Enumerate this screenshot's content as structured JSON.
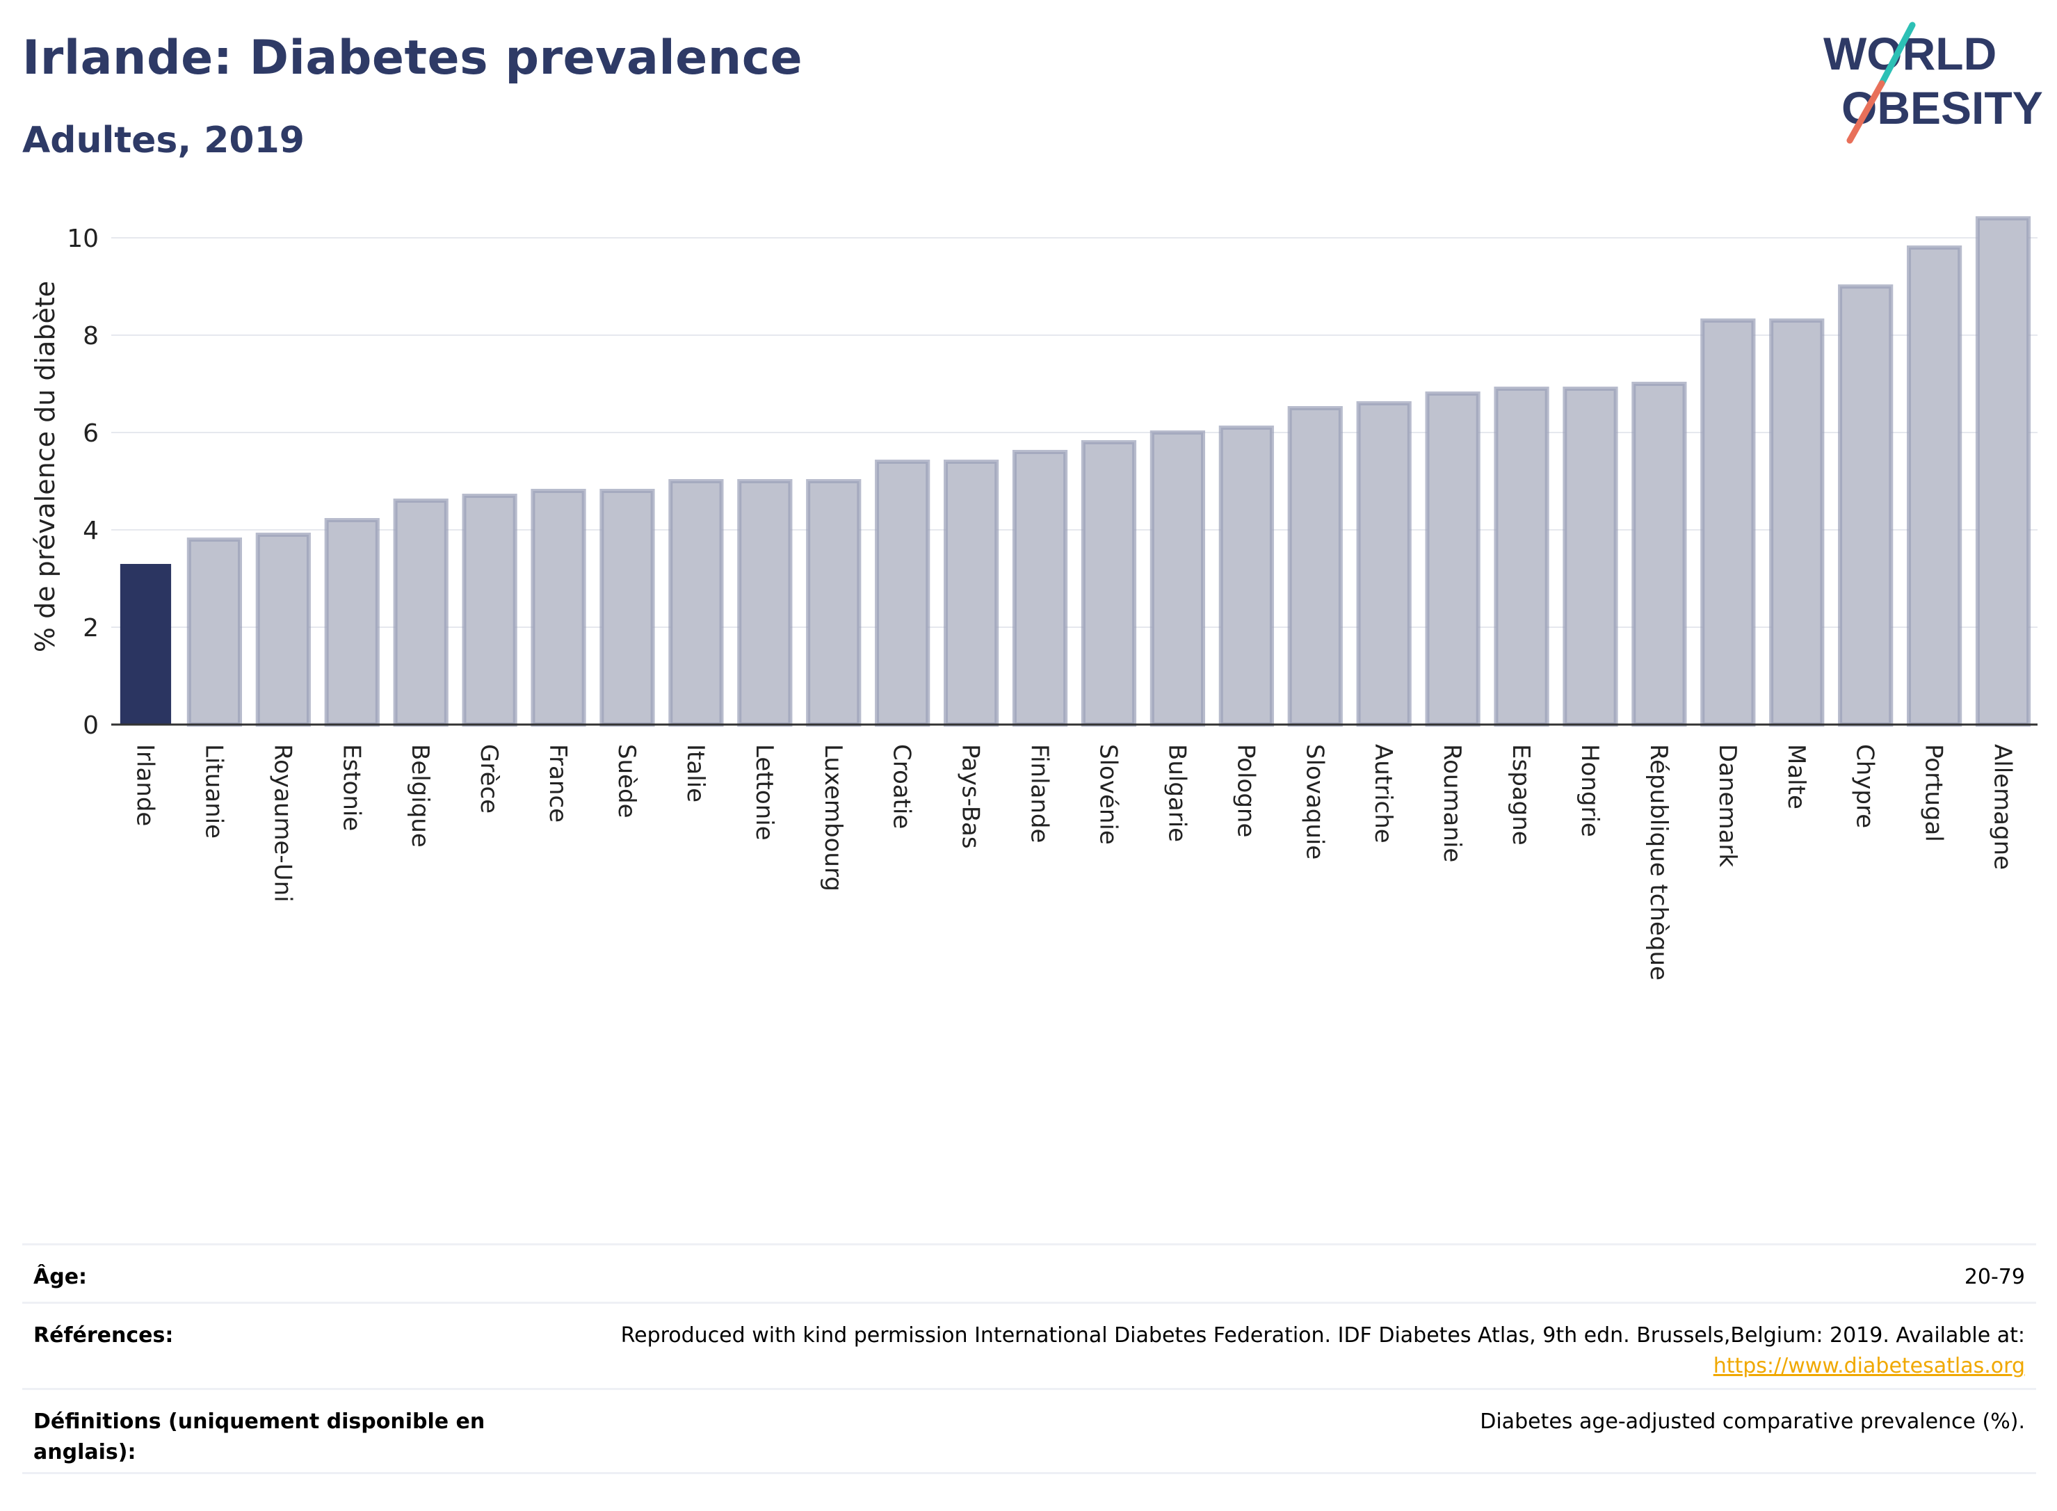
{
  "header": {
    "title": "Irlande: Diabetes prevalence",
    "subtitle": "Adultes, 2019"
  },
  "logo": {
    "line1": "WORLD",
    "line2": "OBESITY",
    "accent_teal": "#2cc0b5",
    "accent_coral": "#e8705a",
    "text_color": "#2e3a66"
  },
  "colors": {
    "highlight_bar": "#2b3561",
    "other_bar_fill": "#bfc2cf",
    "other_bar_stroke": "#9aa0b8",
    "axis": "#333333",
    "grid": "#e6e8ee"
  },
  "chart_data": {
    "type": "bar",
    "ylabel": "% de prévalence du diabète",
    "ylim": [
      0,
      10.6
    ],
    "yticks": [
      0,
      2,
      4,
      6,
      8,
      10
    ],
    "grid": true,
    "highlight": "Irlande",
    "categories": [
      "Irlande",
      "Lituanie",
      "Royaume-Uni",
      "Estonie",
      "Belgique",
      "Grèce",
      "France",
      "Suède",
      "Italie",
      "Lettonie",
      "Luxembourg",
      "Croatie",
      "Pays-Bas",
      "Finlande",
      "Slovénie",
      "Bulgarie",
      "Pologne",
      "Slovaquie",
      "Autriche",
      "Roumanie",
      "Espagne",
      "Hongrie",
      "République tchèque",
      "Danemark",
      "Malte",
      "Chypre",
      "Portugal",
      "Allemagne"
    ],
    "values": [
      3.3,
      3.8,
      3.9,
      4.2,
      4.6,
      4.7,
      4.8,
      4.8,
      5.0,
      5.0,
      5.0,
      5.4,
      5.4,
      5.6,
      5.8,
      6.0,
      6.1,
      6.5,
      6.6,
      6.8,
      6.9,
      6.9,
      7.0,
      8.3,
      8.3,
      9.0,
      9.8,
      10.4
    ]
  },
  "footer": {
    "age_label": "Âge:",
    "age_value": "20-79",
    "refs_label": "Références:",
    "refs_text": "Reproduced with kind permission International Diabetes Federation. IDF Diabetes Atlas, 9th edn. Brussels,Belgium: 2019. Available at:",
    "refs_link": "https://www.diabetesatlas.org",
    "defs_label": "Définitions (uniquement disponible en anglais):",
    "defs_value": "Diabetes age-adjusted comparative prevalence (%)."
  }
}
